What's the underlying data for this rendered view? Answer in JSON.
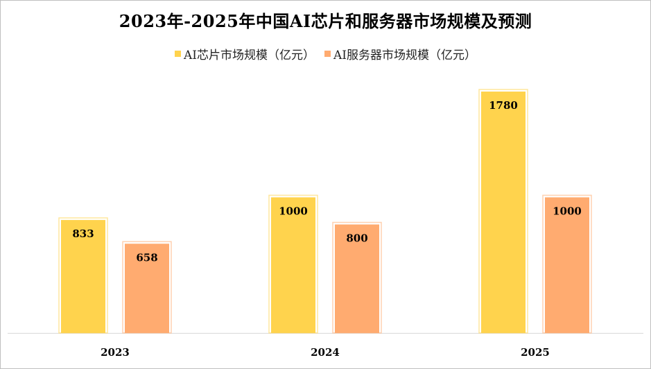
{
  "chart_data": {
    "type": "bar",
    "title": "2023年-2025年中国AI芯片和服务器市场规模及预测",
    "categories": [
      "2023",
      "2024",
      "2025"
    ],
    "series": [
      {
        "name": "AI芯片市场规模（亿元）",
        "values": [
          833,
          1000,
          1780
        ],
        "color": "#FFD34D"
      },
      {
        "name": "AI服务器市场规模（亿元）",
        "values": [
          658,
          800,
          1000
        ],
        "color": "#FFAB70"
      }
    ],
    "ylim": [
      0,
      2000
    ],
    "grid": false,
    "legend_position": "top-center",
    "data_labels": true
  }
}
